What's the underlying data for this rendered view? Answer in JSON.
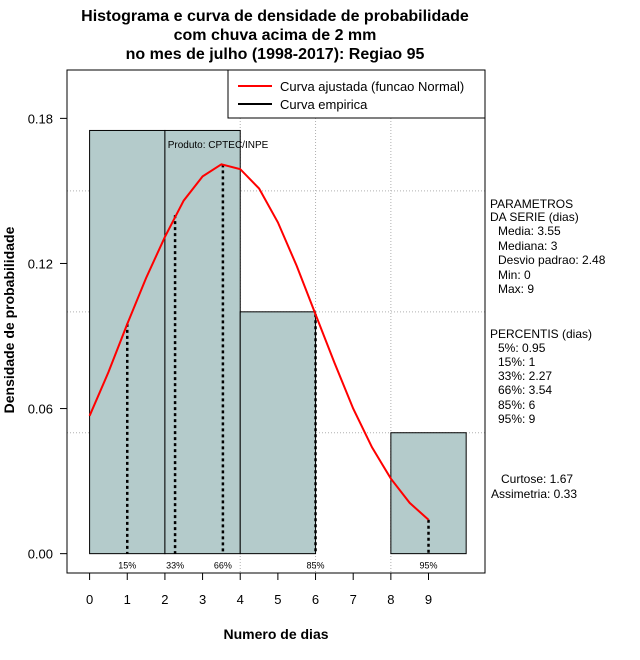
{
  "chart_data": {
    "type": "bar",
    "title_lines": [
      "Histograma e curva de densidade de probabilidade",
      "com chuva acima de 2 mm",
      "no mes de julho (1998-2017): Regiao 95"
    ],
    "xlabel": "Numero de dias",
    "ylabel": "Densidade de probabilidade",
    "xlim": [
      -0.6,
      10.5
    ],
    "ylim": [
      -0.008,
      0.2
    ],
    "x_ticks": [
      "0",
      "1",
      "2",
      "3",
      "4",
      "5",
      "6",
      "7",
      "8",
      "9"
    ],
    "y_ticks": [
      "0.00",
      "0.06",
      "0.12",
      "0.18"
    ],
    "grid": true,
    "bars": [
      {
        "x0": 0,
        "x1": 2,
        "value": 0.175
      },
      {
        "x0": 2,
        "x1": 4,
        "value": 0.175
      },
      {
        "x0": 4,
        "x1": 6,
        "value": 0.1
      },
      {
        "x0": 6,
        "x1": 8,
        "value": 0.0
      },
      {
        "x0": 8,
        "x1": 10,
        "value": 0.05
      }
    ],
    "fitted_curve": {
      "name": "Curva ajustada (funcao Normal)",
      "color": "#ff0000",
      "x": [
        0,
        0.5,
        1,
        1.5,
        2,
        2.5,
        3,
        3.5,
        4,
        4.5,
        5,
        5.5,
        6,
        6.5,
        7,
        7.5,
        8,
        8.5,
        9
      ],
      "y": [
        0.057,
        0.075,
        0.095,
        0.114,
        0.131,
        0.146,
        0.156,
        0.161,
        0.159,
        0.151,
        0.137,
        0.119,
        0.099,
        0.079,
        0.06,
        0.044,
        0.031,
        0.021,
        0.014
      ]
    },
    "empirical_curve": {
      "name": "Curva empirica",
      "color": "#000000"
    },
    "percentile_marks": [
      {
        "label": "15%",
        "x": 1,
        "y": 0.095
      },
      {
        "label": "33%",
        "x": 2.27,
        "y": 0.14
      },
      {
        "label": "66%",
        "x": 3.54,
        "y": 0.161
      },
      {
        "label": "85%",
        "x": 6,
        "y": 0.099
      },
      {
        "label": "95%",
        "x": 9,
        "y": 0.014
      }
    ],
    "credit": "Produto: CPTEC/INPE",
    "legend_position": "top-right"
  },
  "side_panel": {
    "params_title": [
      "PARAMETROS",
      "DA SERIE (dias)"
    ],
    "params": [
      "Media: 3.55",
      "Mediana: 3",
      "Desvio padrao: 2.48",
      "Min: 0",
      "Max: 9"
    ],
    "percentis_title": "PERCENTIS (dias)",
    "percentis": [
      "5%: 0.95",
      "15%: 1",
      "33%: 2.27",
      "66%: 3.54",
      "85%: 6",
      "95%: 9"
    ],
    "curtose": "Curtose: 1.67",
    "assimetria": "Assimetria: 0.33"
  },
  "colors": {
    "bar_fill": "#b4cbcb",
    "bar_stroke": "#000000",
    "grid": "#b0b0b0",
    "curve": "#ff0000"
  }
}
